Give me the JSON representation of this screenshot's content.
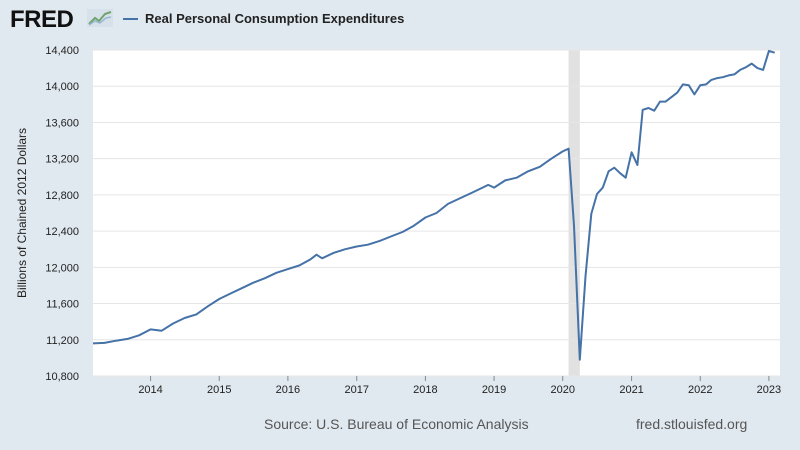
{
  "header": {
    "logo_text": "FRED",
    "logo_icon": "line-graph-icon"
  },
  "colors": {
    "page_background": "#e1e9f0",
    "plot_background": "#ffffff",
    "series_line": "#4572a7",
    "recession_band": "#e1e1e1",
    "grid": "#e6e6e6"
  },
  "footer": {
    "source": "Source: U.S. Bureau of Economic Analysis",
    "url": "fred.stlouisfed.org"
  },
  "chart_data": {
    "type": "line",
    "xlabel": "",
    "ylabel": "Billions of Chained 2012 Dollars",
    "ylim": [
      10800,
      14400
    ],
    "xlim": [
      "2013-03-01",
      "2023-03-01"
    ],
    "yticks": [
      10800,
      11200,
      11600,
      12000,
      12400,
      12800,
      13200,
      13600,
      14000,
      14400
    ],
    "ytick_labels": [
      "10,800",
      "11,200",
      "11,600",
      "12,000",
      "12,400",
      "12,800",
      "13,200",
      "13,600",
      "14,000",
      "14,400"
    ],
    "xticks": [
      "2014-01-01",
      "2015-01-01",
      "2016-01-01",
      "2017-01-01",
      "2018-01-01",
      "2019-01-01",
      "2020-01-01",
      "2021-01-01",
      "2022-01-01",
      "2023-01-01"
    ],
    "xtick_labels": [
      "2014",
      "2015",
      "2016",
      "2017",
      "2018",
      "2019",
      "2020",
      "2021",
      "2022",
      "2023"
    ],
    "grid": "horizontal",
    "recessions": [
      {
        "start": "2020-02-01",
        "end": "2020-04-01"
      }
    ],
    "series": [
      {
        "name": "Real Personal Consumption Expenditures",
        "points": [
          [
            "2013-03-01",
            11160
          ],
          [
            "2013-05-01",
            11165
          ],
          [
            "2013-07-01",
            11190
          ],
          [
            "2013-09-01",
            11210
          ],
          [
            "2013-11-01",
            11250
          ],
          [
            "2014-01-01",
            11315
          ],
          [
            "2014-03-01",
            11300
          ],
          [
            "2014-05-01",
            11380
          ],
          [
            "2014-07-01",
            11440
          ],
          [
            "2014-09-01",
            11480
          ],
          [
            "2014-11-01",
            11570
          ],
          [
            "2015-01-01",
            11650
          ],
          [
            "2015-03-01",
            11710
          ],
          [
            "2015-05-01",
            11770
          ],
          [
            "2015-07-01",
            11830
          ],
          [
            "2015-09-01",
            11880
          ],
          [
            "2015-11-01",
            11940
          ],
          [
            "2016-01-01",
            11980
          ],
          [
            "2016-03-01",
            12020
          ],
          [
            "2016-05-01",
            12090
          ],
          [
            "2016-06-01",
            12140
          ],
          [
            "2016-07-01",
            12100
          ],
          [
            "2016-09-01",
            12160
          ],
          [
            "2016-11-01",
            12200
          ],
          [
            "2017-01-01",
            12230
          ],
          [
            "2017-03-01",
            12250
          ],
          [
            "2017-05-01",
            12290
          ],
          [
            "2017-07-01",
            12340
          ],
          [
            "2017-09-01",
            12390
          ],
          [
            "2017-11-01",
            12460
          ],
          [
            "2018-01-01",
            12550
          ],
          [
            "2018-03-01",
            12600
          ],
          [
            "2018-05-01",
            12700
          ],
          [
            "2018-07-01",
            12760
          ],
          [
            "2018-09-01",
            12820
          ],
          [
            "2018-11-01",
            12880
          ],
          [
            "2018-12-01",
            12910
          ],
          [
            "2019-01-01",
            12880
          ],
          [
            "2019-03-01",
            12960
          ],
          [
            "2019-05-01",
            12990
          ],
          [
            "2019-07-01",
            13060
          ],
          [
            "2019-09-01",
            13110
          ],
          [
            "2019-11-01",
            13200
          ],
          [
            "2020-01-01",
            13280
          ],
          [
            "2020-02-01",
            13310
          ],
          [
            "2020-03-01",
            12460
          ],
          [
            "2020-04-01",
            10980
          ],
          [
            "2020-05-01",
            11900
          ],
          [
            "2020-06-01",
            12590
          ],
          [
            "2020-07-01",
            12810
          ],
          [
            "2020-08-01",
            12880
          ],
          [
            "2020-09-01",
            13060
          ],
          [
            "2020-10-01",
            13100
          ],
          [
            "2020-11-01",
            13040
          ],
          [
            "2020-12-01",
            12990
          ],
          [
            "2021-01-01",
            13270
          ],
          [
            "2021-02-01",
            13130
          ],
          [
            "2021-03-01",
            13740
          ],
          [
            "2021-04-01",
            13760
          ],
          [
            "2021-05-01",
            13730
          ],
          [
            "2021-06-01",
            13830
          ],
          [
            "2021-07-01",
            13830
          ],
          [
            "2021-08-01",
            13880
          ],
          [
            "2021-09-01",
            13930
          ],
          [
            "2021-10-01",
            14020
          ],
          [
            "2021-11-01",
            14010
          ],
          [
            "2021-12-01",
            13910
          ],
          [
            "2022-01-01",
            14010
          ],
          [
            "2022-02-01",
            14020
          ],
          [
            "2022-03-01",
            14070
          ],
          [
            "2022-04-01",
            14090
          ],
          [
            "2022-05-01",
            14100
          ],
          [
            "2022-06-01",
            14120
          ],
          [
            "2022-07-01",
            14130
          ],
          [
            "2022-08-01",
            14180
          ],
          [
            "2022-09-01",
            14210
          ],
          [
            "2022-10-01",
            14250
          ],
          [
            "2022-11-01",
            14200
          ],
          [
            "2022-12-01",
            14180
          ],
          [
            "2023-01-01",
            14390
          ],
          [
            "2023-02-01",
            14370
          ]
        ]
      }
    ]
  }
}
